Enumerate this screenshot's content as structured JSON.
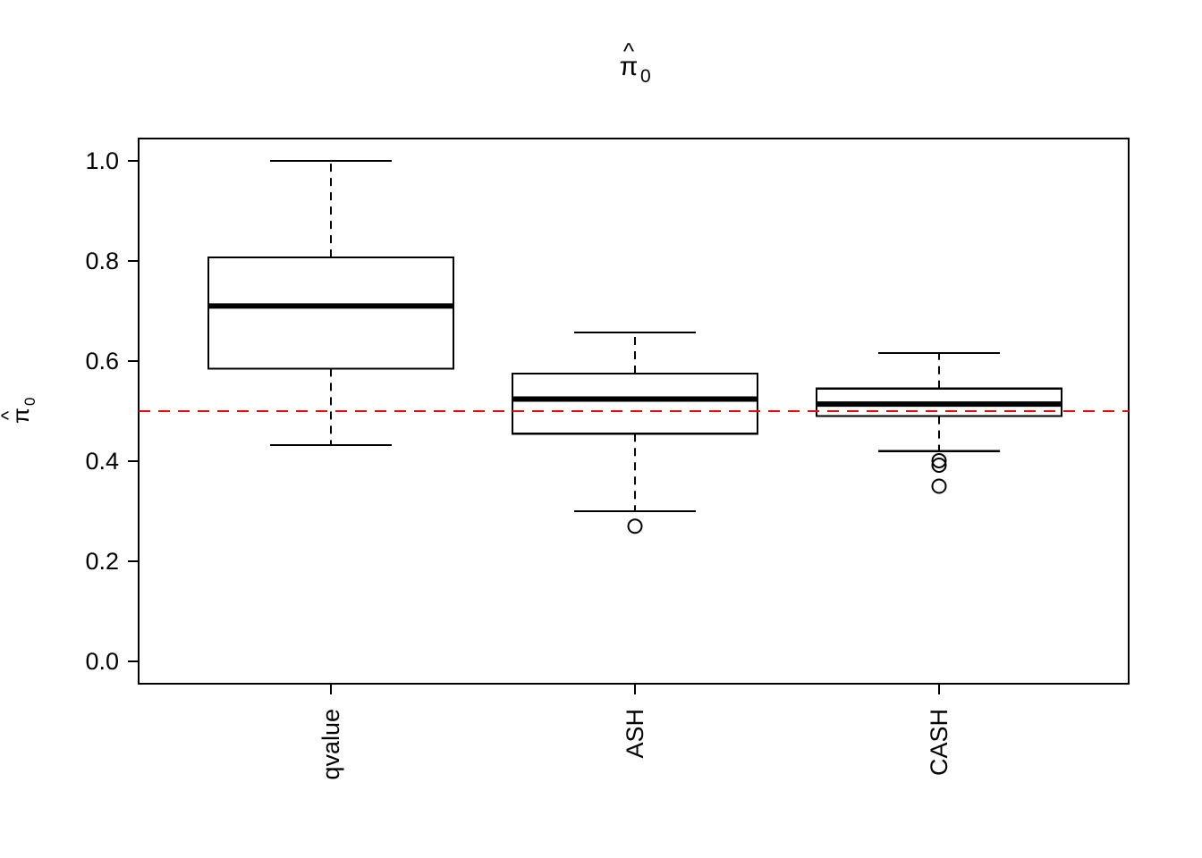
{
  "chart_data": {
    "type": "boxplot",
    "title": {
      "symbol": "π",
      "hat": "^",
      "subscript": "0"
    },
    "y_axis": {
      "label": {
        "symbol": "π",
        "hat": "^",
        "subscript": "0"
      },
      "ticks": [
        0.0,
        0.2,
        0.4,
        0.6,
        0.8,
        1.0
      ],
      "tick_labels": [
        "0.0",
        "0.2",
        "0.4",
        "0.6",
        "0.8",
        "1.0"
      ],
      "range": [
        -0.04,
        1.04
      ]
    },
    "categories": [
      "qvalue",
      "ASH",
      "CASH"
    ],
    "series": [
      {
        "name": "qvalue",
        "whisker_low": 0.432,
        "q1": 0.585,
        "median": 0.71,
        "q3": 0.807,
        "whisker_high": 1.0,
        "outliers": []
      },
      {
        "name": "ASH",
        "whisker_low": 0.3,
        "q1": 0.455,
        "median": 0.524,
        "q3": 0.575,
        "whisker_high": 0.657,
        "outliers": [
          0.27
        ]
      },
      {
        "name": "CASH",
        "whisker_low": 0.42,
        "q1": 0.49,
        "median": 0.514,
        "q3": 0.545,
        "whisker_high": 0.616,
        "outliers": [
          0.401,
          0.392,
          0.35
        ]
      }
    ],
    "reference_line": {
      "value": 0.5,
      "color": "#ff0000",
      "style": "dashed"
    },
    "colors": {
      "box_fill": "#ffffff",
      "stroke": "#000000",
      "background": "#ffffff"
    },
    "grid": false,
    "legend": null
  }
}
